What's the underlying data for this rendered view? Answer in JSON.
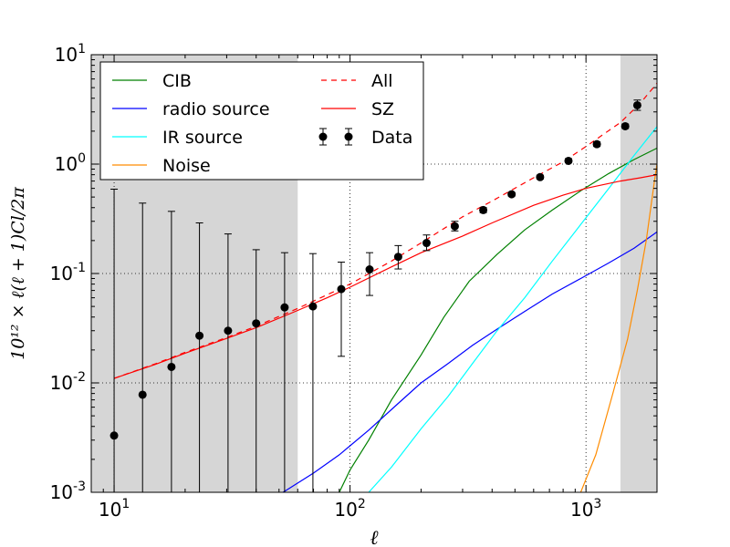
{
  "chart_data": {
    "type": "line",
    "xscale": "log",
    "yscale": "log",
    "xlim": [
      8,
      2000
    ],
    "ylim": [
      0.001,
      10
    ],
    "grid": "dotted",
    "xlabel": "ℓ",
    "ylabel": "10¹² × ℓ(ℓ + 1)Cl/2π",
    "x_ticks": [
      {
        "value": 10,
        "base": "10",
        "exp": "1"
      },
      {
        "value": 100,
        "base": "10",
        "exp": "2"
      },
      {
        "value": 1000,
        "base": "10",
        "exp": "3"
      }
    ],
    "y_ticks": [
      {
        "value": 0.001,
        "base": "10",
        "exp": "-3"
      },
      {
        "value": 0.01,
        "base": "10",
        "exp": "-2"
      },
      {
        "value": 0.1,
        "base": "10",
        "exp": "-1"
      },
      {
        "value": 1,
        "base": "10",
        "exp": "0"
      },
      {
        "value": 10,
        "base": "10",
        "exp": "1"
      }
    ],
    "shaded_regions": [
      [
        8,
        60
      ],
      [
        1400,
        2000
      ]
    ],
    "shade_color": "#d6d6d6",
    "legend_position": "upper-left",
    "series": [
      {
        "name": "CIB",
        "color": "#008000",
        "style": "solid",
        "x": [
          90,
          100,
          120,
          150,
          200,
          250,
          320,
          420,
          550,
          720,
          950,
          1250,
          1600,
          2000
        ],
        "y": [
          0.001,
          0.0016,
          0.003,
          0.007,
          0.018,
          0.04,
          0.085,
          0.15,
          0.25,
          0.38,
          0.57,
          0.82,
          1.1,
          1.4
        ]
      },
      {
        "name": "radio source",
        "color": "#0000ff",
        "style": "solid",
        "x": [
          52,
          70,
          90,
          120,
          160,
          200,
          260,
          330,
          420,
          550,
          720,
          950,
          1250,
          1600,
          2000
        ],
        "y": [
          0.001,
          0.0015,
          0.0022,
          0.0037,
          0.0065,
          0.01,
          0.015,
          0.022,
          0.031,
          0.045,
          0.065,
          0.09,
          0.125,
          0.17,
          0.24
        ]
      },
      {
        "name": "IR source",
        "color": "#00ffff",
        "style": "solid",
        "x": [
          120,
          150,
          200,
          260,
          330,
          420,
          550,
          720,
          950,
          1250,
          1600,
          2000
        ],
        "y": [
          0.001,
          0.0017,
          0.0038,
          0.0075,
          0.015,
          0.03,
          0.06,
          0.13,
          0.28,
          0.6,
          1.2,
          2.2
        ]
      },
      {
        "name": "Noise",
        "color": "#ff8c00",
        "style": "solid",
        "x": [
          950,
          1100,
          1300,
          1500,
          1650,
          1800,
          1950,
          2000
        ],
        "y": [
          0.001,
          0.0022,
          0.008,
          0.025,
          0.07,
          0.2,
          0.7,
          1.0
        ]
      },
      {
        "name": "All",
        "color": "#ff0000",
        "style": "dashed",
        "x": [
          10,
          15,
          20,
          30,
          40,
          60,
          80,
          100,
          150,
          200,
          300,
          400,
          600,
          800,
          1000,
          1400,
          1700,
          2000
        ],
        "y": [
          0.011,
          0.015,
          0.019,
          0.026,
          0.033,
          0.048,
          0.064,
          0.08,
          0.13,
          0.19,
          0.33,
          0.46,
          0.75,
          1.05,
          1.45,
          2.4,
          3.6,
          5.5
        ]
      },
      {
        "name": "SZ",
        "color": "#ff0000",
        "style": "solid",
        "x": [
          10,
          15,
          20,
          30,
          40,
          60,
          80,
          100,
          150,
          200,
          300,
          400,
          600,
          800,
          1000,
          1400,
          1700,
          2000
        ],
        "y": [
          0.011,
          0.0148,
          0.0187,
          0.0255,
          0.032,
          0.046,
          0.06,
          0.075,
          0.115,
          0.155,
          0.22,
          0.29,
          0.42,
          0.52,
          0.6,
          0.7,
          0.75,
          0.8
        ]
      }
    ],
    "data_points": {
      "name": "Data",
      "color": "#000000",
      "x": [
        10,
        13.2,
        17.5,
        23,
        30.4,
        40,
        52.8,
        69.6,
        91.8,
        121,
        160,
        211,
        278,
        367,
        484,
        639,
        843,
        1112,
        1467
      ],
      "y": [
        0.0033,
        0.0078,
        0.014,
        0.027,
        0.03,
        0.035,
        0.049,
        0.05,
        0.072,
        0.109,
        0.142,
        0.19,
        0.27,
        0.38,
        0.53,
        0.76,
        1.07,
        1.52,
        2.22
      ],
      "yerr_upper": [
        0.59,
        0.44,
        0.37,
        0.29,
        0.23,
        0.165,
        0.155,
        0.152,
        0.127,
        0.155,
        0.18,
        0.225,
        0.3,
        0.4,
        0.55,
        0.79,
        1.12,
        1.6,
        2.32
      ],
      "yerr_lower": [
        0.001,
        0.001,
        0.001,
        0.001,
        0.001,
        0.001,
        0.001,
        0.001,
        0.0175,
        0.063,
        0.11,
        0.162,
        0.245,
        0.36,
        0.51,
        0.73,
        1.03,
        1.45,
        2.12
      ]
    },
    "extra_point": {
      "x": 1650,
      "y": 3.45,
      "yerr_upper": 3.85,
      "yerr_lower": 3.1
    }
  }
}
